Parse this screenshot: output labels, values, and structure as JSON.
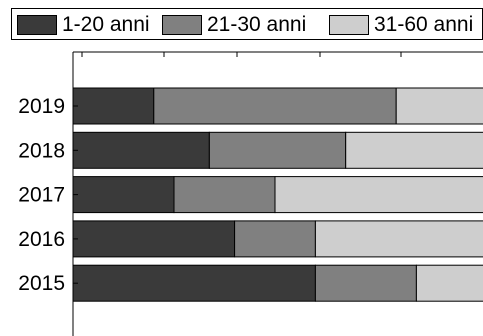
{
  "chart_data": {
    "type": "bar",
    "orientation": "horizontal",
    "stacked": true,
    "categories": [
      "2019",
      "2018",
      "2017",
      "2016",
      "2015"
    ],
    "series": [
      {
        "name": "1-20 anni",
        "values": [
          16,
          27,
          20,
          32,
          48
        ]
      },
      {
        "name": "21-30 anni",
        "values": [
          48,
          27,
          20,
          16,
          20
        ]
      },
      {
        "name": "31-60 anni",
        "values": [
          36,
          46,
          60,
          52,
          32
        ]
      }
    ],
    "xlim": [
      0,
      100
    ],
    "grid": false,
    "legend": "top",
    "colors": [
      "#3a3a3a",
      "#808080",
      "#cecece"
    ]
  }
}
